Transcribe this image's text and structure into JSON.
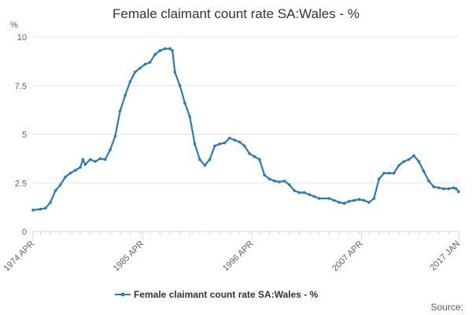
{
  "chart_data": {
    "type": "line",
    "title": "Female claimant count rate SA:Wales - %",
    "yunit": "%",
    "ylim": [
      0,
      10
    ],
    "yticks": [
      0,
      2.5,
      5,
      7.5,
      10
    ],
    "ytick_labels": [
      "0",
      "2.5",
      "5",
      "7.5",
      "10"
    ],
    "xlim": [
      "1974-04",
      "2017-01"
    ],
    "xticks": [
      "1974-04",
      "1985-04",
      "1996-04",
      "2007-04",
      "2017-01"
    ],
    "xtick_labels": [
      "1974 APR",
      "1985 APR",
      "1996 APR",
      "2007 APR",
      "2017 JAN"
    ],
    "minor_ticks": "yearly",
    "grid": "horizontal",
    "legend_position": "bottom",
    "series": [
      {
        "name": "Female claimant count rate SA:Wales - %",
        "color": "#2b7bb9",
        "points": [
          [
            "1974-04",
            1.1
          ],
          [
            "1975-01",
            1.15
          ],
          [
            "1975-07",
            1.2
          ],
          [
            "1976-01",
            1.5
          ],
          [
            "1976-07",
            2.1
          ],
          [
            "1977-01",
            2.4
          ],
          [
            "1977-07",
            2.8
          ],
          [
            "1978-01",
            3.0
          ],
          [
            "1978-07",
            3.15
          ],
          [
            "1979-01",
            3.3
          ],
          [
            "1979-04",
            3.7
          ],
          [
            "1979-07",
            3.45
          ],
          [
            "1980-01",
            3.7
          ],
          [
            "1980-07",
            3.6
          ],
          [
            "1981-01",
            3.75
          ],
          [
            "1981-07",
            3.7
          ],
          [
            "1982-01",
            4.2
          ],
          [
            "1982-07",
            4.9
          ],
          [
            "1983-01",
            6.2
          ],
          [
            "1983-07",
            7.0
          ],
          [
            "1984-01",
            7.7
          ],
          [
            "1984-07",
            8.2
          ],
          [
            "1985-01",
            8.4
          ],
          [
            "1985-07",
            8.6
          ],
          [
            "1986-01",
            8.7
          ],
          [
            "1986-07",
            9.1
          ],
          [
            "1987-01",
            9.3
          ],
          [
            "1987-07",
            9.4
          ],
          [
            "1988-01",
            9.4
          ],
          [
            "1988-04",
            9.3
          ],
          [
            "1988-07",
            8.2
          ],
          [
            "1989-01",
            7.5
          ],
          [
            "1989-07",
            6.6
          ],
          [
            "1990-01",
            5.9
          ],
          [
            "1990-07",
            4.5
          ],
          [
            "1991-01",
            3.7
          ],
          [
            "1991-07",
            3.4
          ],
          [
            "1992-01",
            3.7
          ],
          [
            "1992-07",
            4.4
          ],
          [
            "1993-01",
            4.5
          ],
          [
            "1993-07",
            4.55
          ],
          [
            "1994-01",
            4.8
          ],
          [
            "1994-07",
            4.7
          ],
          [
            "1995-01",
            4.6
          ],
          [
            "1995-07",
            4.4
          ],
          [
            "1996-01",
            4.0
          ],
          [
            "1996-07",
            3.85
          ],
          [
            "1997-01",
            3.7
          ],
          [
            "1997-07",
            2.9
          ],
          [
            "1998-01",
            2.7
          ],
          [
            "1998-07",
            2.6
          ],
          [
            "1999-01",
            2.55
          ],
          [
            "1999-07",
            2.6
          ],
          [
            "2000-01",
            2.4
          ],
          [
            "2000-07",
            2.1
          ],
          [
            "2001-01",
            2.0
          ],
          [
            "2001-07",
            2.0
          ],
          [
            "2002-01",
            1.9
          ],
          [
            "2002-07",
            1.8
          ],
          [
            "2003-01",
            1.7
          ],
          [
            "2004-01",
            1.7
          ],
          [
            "2004-07",
            1.6
          ],
          [
            "2005-01",
            1.5
          ],
          [
            "2005-07",
            1.45
          ],
          [
            "2006-01",
            1.55
          ],
          [
            "2006-07",
            1.6
          ],
          [
            "2007-01",
            1.65
          ],
          [
            "2007-07",
            1.6
          ],
          [
            "2008-01",
            1.5
          ],
          [
            "2008-07",
            1.7
          ],
          [
            "2009-01",
            2.7
          ],
          [
            "2009-07",
            3.0
          ],
          [
            "2010-01",
            3.0
          ],
          [
            "2010-07",
            3.0
          ],
          [
            "2011-01",
            3.4
          ],
          [
            "2011-07",
            3.6
          ],
          [
            "2012-01",
            3.7
          ],
          [
            "2012-07",
            3.9
          ],
          [
            "2013-01",
            3.6
          ],
          [
            "2013-07",
            3.1
          ],
          [
            "2014-01",
            2.6
          ],
          [
            "2014-07",
            2.3
          ],
          [
            "2015-01",
            2.25
          ],
          [
            "2015-07",
            2.2
          ],
          [
            "2016-01",
            2.2
          ],
          [
            "2016-07",
            2.25
          ],
          [
            "2016-10",
            2.2
          ],
          [
            "2017-01",
            2.05
          ]
        ]
      }
    ]
  },
  "source_label": "Source:"
}
